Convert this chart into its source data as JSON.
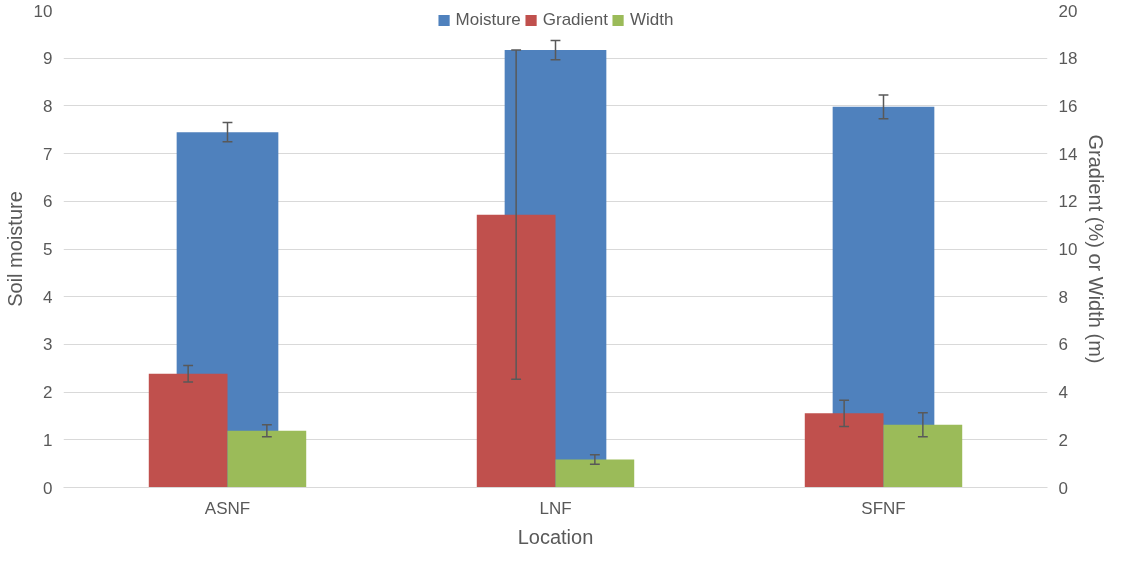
{
  "chart_data": {
    "type": "bar",
    "categories": [
      "ASNF",
      "LNF",
      "SFNF"
    ],
    "xlabel": "Location",
    "ylabel": "Soil moisture",
    "y2label": "Gradient (%) or Width (m)",
    "ylim": [
      0,
      10
    ],
    "yticks": [
      0,
      1,
      2,
      3,
      4,
      5,
      6,
      7,
      8,
      9,
      10
    ],
    "y2lim": [
      0,
      20
    ],
    "y2ticks": [
      0,
      2,
      4,
      6,
      8,
      10,
      12,
      14,
      16,
      18,
      20
    ],
    "grid": "y",
    "legend": "top",
    "series": [
      {
        "name": "Moisture",
        "color": "#4f81bd",
        "values": [
          7.45,
          9.17,
          7.98
        ],
        "errors": [
          0.2,
          0.2,
          0.25
        ]
      },
      {
        "name": "Gradient",
        "color": "#c0504d",
        "values": [
          4.77,
          11.44,
          3.11
        ],
        "errors": [
          0.35,
          6.9,
          0.55
        ],
        "axis": "y2"
      },
      {
        "name": "Width",
        "color": "#9bbb59",
        "values": [
          2.38,
          1.17,
          2.63
        ],
        "errors": [
          0.25,
          0.2,
          0.5
        ],
        "axis": "y2"
      }
    ]
  }
}
